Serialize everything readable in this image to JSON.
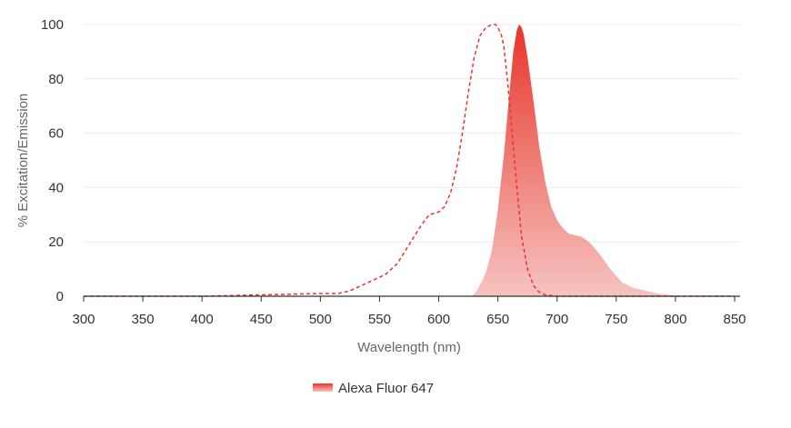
{
  "chart_data": {
    "type": "area",
    "xlabel": "Wavelength (nm)",
    "ylabel": "% Excitation/Emission",
    "xlim": [
      300,
      850
    ],
    "ylim": [
      0,
      100
    ],
    "x_ticks": [
      300,
      350,
      400,
      450,
      500,
      550,
      600,
      650,
      700,
      750,
      800,
      850
    ],
    "y_ticks": [
      0,
      20,
      40,
      60,
      80,
      100
    ],
    "grid": "horizontal",
    "legend_position": "bottom-center",
    "legend": [
      "Alexa Fluor 647"
    ],
    "colors": {
      "excitation": "#e8352b",
      "emission_top": "#e8352b",
      "emission_bottom": "#f6c3c0",
      "grid": "#ececec",
      "axis": "#333333"
    },
    "series": [
      {
        "role": "excitation",
        "style": "dashed-line",
        "x": [
          300,
          400,
          500,
          515,
          525,
          535,
          545,
          555,
          565,
          575,
          585,
          592,
          600,
          605,
          610,
          615,
          620,
          625,
          630,
          635,
          640,
          645,
          648,
          650,
          653,
          655,
          658,
          662,
          666,
          670,
          675,
          680,
          685,
          690,
          700,
          720,
          800,
          850
        ],
        "y": [
          0,
          0,
          1,
          1,
          2,
          4,
          6,
          8,
          12,
          19,
          26,
          30,
          31,
          33,
          38,
          47,
          60,
          75,
          88,
          96,
          99,
          100,
          100,
          99,
          96,
          92,
          80,
          60,
          40,
          22,
          10,
          4,
          1.5,
          0.5,
          0,
          0,
          0,
          0
        ]
      },
      {
        "role": "emission",
        "style": "filled-area",
        "x": [
          628,
          632,
          636,
          640,
          645,
          650,
          655,
          660,
          663,
          666,
          668,
          670,
          672,
          675,
          680,
          685,
          690,
          695,
          700,
          705,
          710,
          720,
          727,
          735,
          745,
          755,
          765,
          775,
          785,
          795,
          800,
          803
        ],
        "y": [
          0,
          2,
          5,
          9,
          17,
          32,
          52,
          76,
          90,
          98,
          100,
          99,
          96,
          88,
          72,
          55,
          42,
          33,
          28,
          25,
          23,
          22,
          20,
          16,
          10,
          5,
          3,
          2,
          1,
          0.5,
          0.2,
          0
        ]
      }
    ]
  }
}
